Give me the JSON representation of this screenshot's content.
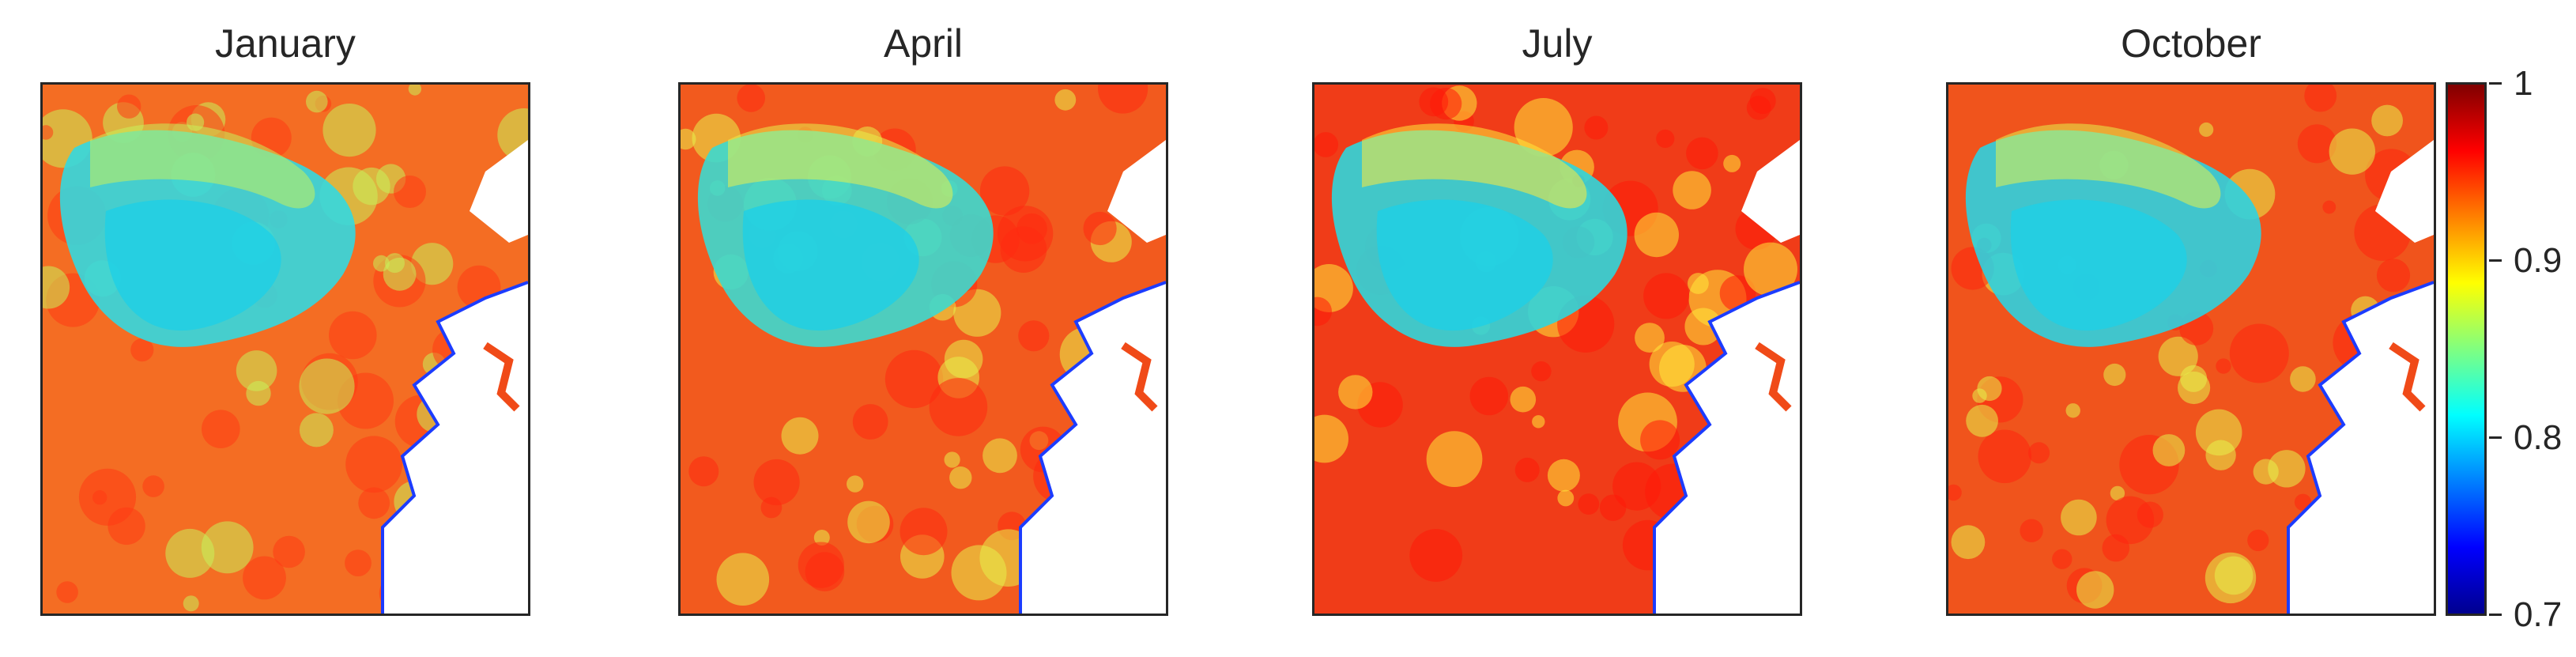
{
  "chart_data": {
    "type": "heatmap",
    "value_range": [
      0.7,
      1.0
    ],
    "colormap": "jet",
    "colorbar": {
      "position": "right",
      "ticks": [
        {
          "value": 1.0,
          "label": "1"
        },
        {
          "value": 0.9,
          "label": "0.9"
        },
        {
          "value": 0.8,
          "label": "0.8"
        },
        {
          "value": 0.7,
          "label": "0.7"
        }
      ]
    },
    "panels": [
      {
        "title": "January"
      },
      {
        "title": "April"
      },
      {
        "title": "July"
      },
      {
        "title": "October"
      }
    ]
  }
}
